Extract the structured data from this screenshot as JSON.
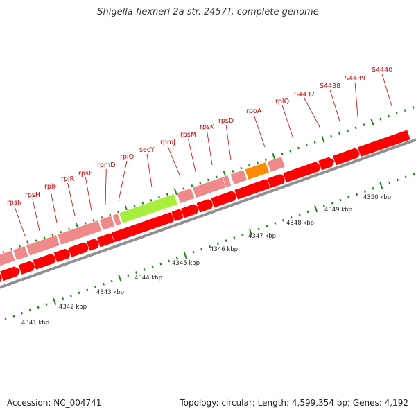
{
  "title": "Shigella flexneri 2a str. 2457T, complete genome",
  "footer": {
    "accession": "Accession: NC_004741",
    "summary": "Topology: circular; Length: 4,599,354 bp; Genes: 4,192"
  },
  "colors": {
    "gene": "#ff0000",
    "gene_light": "#f08a8a",
    "highlight_green": "#a8ee3c",
    "highlight_orange": "#ff8c00",
    "label": "#cc0000",
    "tick": "#1a8a1a",
    "backbone": "#909090"
  },
  "scale_labels": [
    "4341 kbp",
    "4342 kbp",
    "4343 kbp",
    "4344 kbp",
    "4345 kbp",
    "4346 kbp",
    "4347 kbp",
    "4348 kbp",
    "4349 kbp",
    "4350 kbp"
  ],
  "gene_labels": [
    "rpsN",
    "rpsH",
    "rplF",
    "rplR",
    "rpsE",
    "rpmD",
    "rplO",
    "secY",
    "rpmJ",
    "rpsM",
    "rpsK",
    "rpsD",
    "rpoA",
    "rplQ",
    "S4437",
    "S4438",
    "S4439",
    "S4440"
  ]
}
